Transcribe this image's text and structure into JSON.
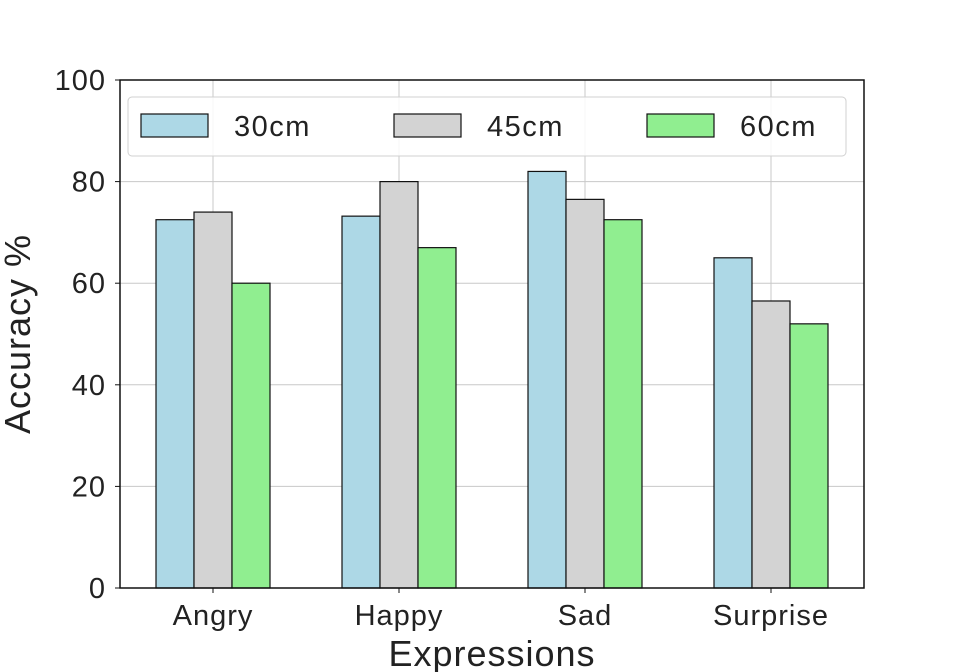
{
  "chart_data": {
    "type": "bar",
    "categories": [
      "Angry",
      "Happy",
      "Sad",
      "Surprise"
    ],
    "series": [
      {
        "name": "30cm",
        "values": [
          72.5,
          73.2,
          82.0,
          65.0
        ],
        "color": "#add8e6"
      },
      {
        "name": "45cm",
        "values": [
          74.0,
          80.0,
          76.5,
          56.5
        ],
        "color": "#d3d3d3"
      },
      {
        "name": "60cm",
        "values": [
          60.0,
          67.0,
          72.5,
          52.0
        ],
        "color": "#90ee90"
      }
    ],
    "xlabel": "Expressions",
    "ylabel": "Accuracy %",
    "ylim": [
      0,
      100
    ],
    "yticks": [
      0,
      20,
      40,
      60,
      80,
      100
    ],
    "grid": true,
    "legend_position": "top",
    "legend_columns": 3
  }
}
